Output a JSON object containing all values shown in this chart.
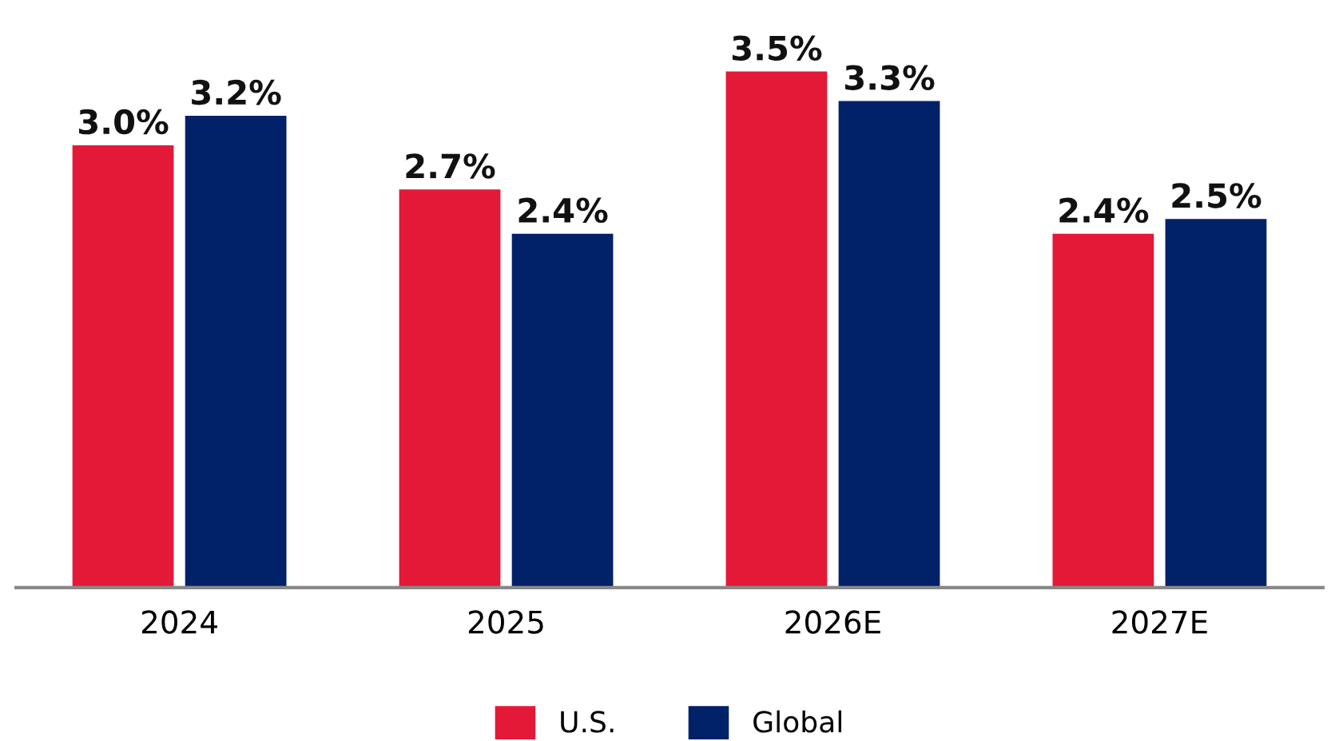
{
  "chart_data": {
    "type": "bar",
    "categories": [
      "2024",
      "2025",
      "2026E",
      "2027E"
    ],
    "series": [
      {
        "name": "U.S.",
        "color": "#e31937",
        "values": [
          3.0,
          2.7,
          3.5,
          2.4
        ],
        "value_labels": [
          "3.0%",
          "2.7%",
          "3.5%",
          "2.4%"
        ]
      },
      {
        "name": "Global",
        "color": "#012169",
        "values": [
          3.2,
          2.4,
          3.3,
          2.5
        ],
        "value_labels": [
          "3.2%",
          "2.4%",
          "3.3%",
          "2.5%"
        ]
      }
    ],
    "legend": "bottom",
    "grid": false
  }
}
